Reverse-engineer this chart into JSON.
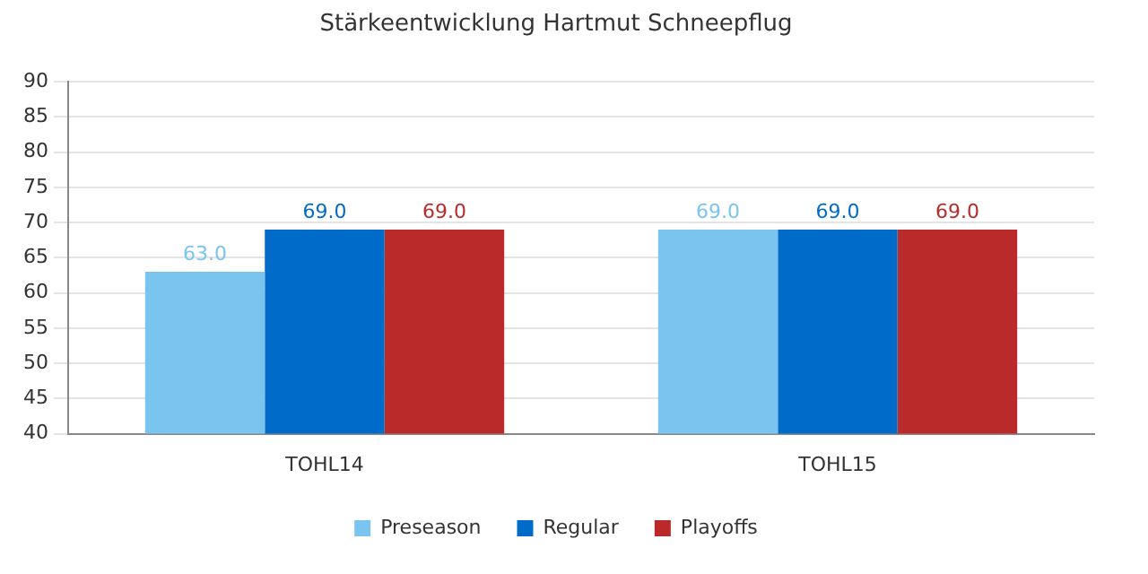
{
  "chart_data": {
    "type": "bar",
    "title": "Stärkeentwicklung Hartmut Schneepflug",
    "categories": [
      "TOHL14",
      "TOHL15"
    ],
    "series": [
      {
        "name": "Preseason",
        "color": "#7ac4f0",
        "values": [
          63,
          69
        ],
        "value_labels": [
          "63.0",
          "69.0"
        ]
      },
      {
        "name": "Regular",
        "color": "#006bc8",
        "values": [
          69,
          69
        ],
        "value_labels": [
          "69.0",
          "69.0"
        ]
      },
      {
        "name": "Playoffs",
        "color": "#bb2a2a",
        "values": [
          69,
          69
        ],
        "value_labels": [
          "69.0",
          "69.0"
        ]
      }
    ],
    "ylim": [
      40,
      90
    ],
    "yticks": [
      40,
      45,
      50,
      55,
      60,
      65,
      70,
      75,
      80,
      85,
      90
    ],
    "grid": "y",
    "legend": "bottom"
  }
}
